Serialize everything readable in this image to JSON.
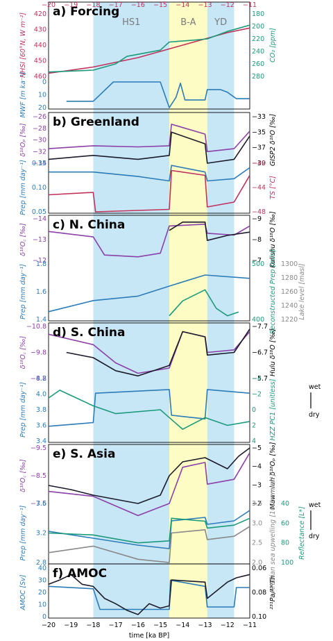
{
  "colors": {
    "stadial": "#c7e7f7",
    "interstadial": "#fcfcc4",
    "purple": "#8b3fa8",
    "black": "#1a1a2a",
    "blue": "#2b7bb9",
    "green": "#1a9a7a",
    "crimson": "#c0305a",
    "gray": "#888888"
  },
  "chart_data": {
    "type": "line",
    "xlabel": "time [ka BP]",
    "xlim": [
      -20,
      -11
    ],
    "xticks": [
      "−20",
      "−19",
      "−18",
      "−17",
      "−16",
      "−15",
      "−14",
      "−13",
      "−12",
      "−11"
    ],
    "bands": [
      {
        "label": "HS1",
        "from": -18.0,
        "to": -14.6,
        "color": "stadial"
      },
      {
        "label": "B-A",
        "from": -14.6,
        "to": -12.9,
        "color": "interstadial"
      },
      {
        "label": "YD",
        "from": -12.9,
        "to": -11.7,
        "color": "stadial"
      }
    ],
    "panels": [
      {
        "title": "a) Forcing",
        "axes": [
          {
            "label": "NHSI [60°N, W m⁻²]",
            "side": "left",
            "color": "#c0305a",
            "ticks": [
              "420",
              "430",
              "440",
              "450",
              "460"
            ]
          },
          {
            "label": "CO₂ [ppm]",
            "side": "right",
            "color": "#1a9a7a",
            "ticks": [
              "180",
              "200",
              "220",
              "240",
              "260",
              "280"
            ]
          },
          {
            "label": "MWF [m ka⁻¹]",
            "side": "left",
            "color": "#2b7bb9",
            "ticks": [
              "0",
              "10",
              "20"
            ]
          }
        ],
        "series": [
          {
            "name": "NHSI",
            "color": "crimson",
            "x": [
              -20,
              -18,
              -16,
              -14,
              -12,
              -11
            ],
            "y": [
              422,
              426,
              432,
              440,
              448,
              451
            ]
          },
          {
            "name": "CO₂",
            "color": "green",
            "x": [
              -20,
              -18,
              -17,
              -16.5,
              -15,
              -14.6,
              -13.5,
              -12.9,
              -12,
              -11
            ],
            "y": [
              187,
              190,
              200,
              212,
              222,
              235,
              238,
              240,
              252,
              262
            ]
          },
          {
            "name": "MWF",
            "color": "blue",
            "x": [
              -20,
              -19.2,
              -18,
              -17.1,
              -16.5,
              -15,
              -14.6,
              -14.3,
              -14.1,
              -13.9,
              -13.0,
              -12.9,
              -12.3,
              -12.0,
              -11.6,
              -11.0
            ],
            "y": [
              null,
              5,
              5,
              20,
              20,
              20,
              0,
              8,
              19,
              6,
              6,
              14,
              14,
              12,
              7,
              7
            ]
          }
        ]
      },
      {
        "title": "b) Greenland",
        "axes": [
          {
            "label": "δ¹⁸Oₚ [‰]",
            "side": "left",
            "color": "#8b3fa8",
            "ticks": [
              "−26",
              "−28",
              "−30",
              "−32",
              "−34"
            ]
          },
          {
            "label": "GISP2 δ¹⁸O [‰]",
            "side": "right",
            "color": "#000000",
            "ticks": [
              "−33",
              "−35",
              "−37",
              "−39"
            ]
          },
          {
            "label": "Prep [mm day⁻¹]",
            "side": "left",
            "color": "#2b7bb9",
            "ticks": [
              "0.15",
              "0.10",
              "0.05"
            ]
          },
          {
            "label": "TS [°C]",
            "side": "right",
            "color": "#c0305a",
            "ticks": [
              "−40",
              "−44",
              "−48"
            ]
          }
        ],
        "series": [
          {
            "name": "δ¹⁸Op",
            "color": "purple",
            "x": [
              -20,
              -18,
              -16,
              -14.6,
              -14.5,
              -13,
              -12.9,
              -11.7,
              -11
            ],
            "y": [
              -31.5,
              -31.0,
              -31.2,
              -31.0,
              -27.3,
              -29.0,
              -32.0,
              -31.5,
              -28.5
            ]
          },
          {
            "name": "GISP2",
            "color": "black",
            "x": [
              -20,
              -18,
              -16,
              -14.6,
              -14.5,
              -13,
              -12.9,
              -11.7,
              -11
            ],
            "y": [
              -38.5,
              -38.0,
              -38.5,
              -38.0,
              -35.0,
              -36.5,
              -39.0,
              -38.5,
              -35.5
            ]
          },
          {
            "name": "Prep",
            "color": "blue",
            "x": [
              -20,
              -18,
              -16,
              -14.6,
              -14.5,
              -13,
              -12.9,
              -11.7,
              -11
            ],
            "y": [
              0.14,
              0.14,
              0.13,
              0.12,
              0.155,
              0.14,
              0.12,
              0.125,
              0.15
            ]
          },
          {
            "name": "TS",
            "color": "crimson",
            "x": [
              -20,
              -18,
              -17.9,
              -14.6,
              -14.5,
              -13,
              -12.9,
              -11.7,
              -11
            ],
            "y": [
              -44.5,
              -44.0,
              -48.0,
              -47.5,
              -39.5,
              -40.5,
              -47.0,
              -46.0,
              -40.5
            ]
          }
        ]
      },
      {
        "title": "c) N. China",
        "axes": [
          {
            "label": "δ¹⁸O꜀ [‰]",
            "side": "left",
            "color": "#8b3fa8",
            "ticks": [
              "−14",
              "−13",
              "−12"
            ]
          },
          {
            "label": "Kulishu δ¹⁸O [‰]",
            "side": "right",
            "color": "#000000",
            "ticks": [
              "−9",
              "−8",
              "−7"
            ]
          },
          {
            "label": "Prep [mm day⁻¹]",
            "side": "left",
            "color": "#2b7bb9",
            "ticks": [
              "1.8",
              "1.6",
              "1.4"
            ]
          },
          {
            "label": "Reconstructed Prep [mm]",
            "side": "right",
            "color": "#1a9a7a",
            "ticks": [
              "500",
              "400"
            ]
          },
          {
            "label": "Lake level [masl]",
            "side": "right",
            "color": "#888888",
            "ticks": [
              "1300",
              "1280",
              "1260",
              "1240",
              "1220"
            ]
          }
        ],
        "series": [
          {
            "name": "δ¹⁸Oc",
            "color": "purple",
            "x": [
              -20,
              -18,
              -17.5,
              -16,
              -15,
              -14.6,
              -13,
              -12.9,
              -11.7,
              -11
            ],
            "y": [
              -13.6,
              -13.3,
              -12.3,
              -12.2,
              -12.4,
              -13.9,
              -14.0,
              -13.5,
              -13.4,
              -13.9
            ]
          },
          {
            "name": "Kulishu",
            "color": "black",
            "x": [
              -14.6,
              -14,
              -13,
              -12.9,
              -12,
              -11
            ],
            "y": [
              -8.6,
              -9.1,
              -9.1,
              -8.0,
              -8.3,
              -8.5
            ]
          },
          {
            "name": "Prep",
            "color": "blue",
            "x": [
              -20,
              -18,
              -16,
              -14.6,
              -13,
              -11
            ],
            "y": [
              1.42,
              1.52,
              1.56,
              1.65,
              1.75,
              1.72
            ]
          },
          {
            "name": "Reconstructed Prep",
            "color": "green",
            "x": [
              -14.6,
              -14,
              -13,
              -12.5,
              -12,
              -11.5
            ],
            "y": [
              380,
              420,
              450,
              400,
              380,
              390
            ]
          }
        ]
      },
      {
        "title": "d) S. China",
        "axes": [
          {
            "label": "δ¹⁸O꜀ [‰]",
            "side": "left",
            "color": "#8b3fa8",
            "ticks": [
              "−10.8",
              "−9.8",
              "−8.8"
            ]
          },
          {
            "label": "Hulu δ¹⁸O [‰]",
            "side": "right",
            "color": "#000000",
            "ticks": [
              "−7.7",
              "−6.7",
              "−5.7"
            ]
          },
          {
            "label": "Prep [mm day⁻¹]",
            "side": "left",
            "color": "#2b7bb9",
            "ticks": [
              "4.2",
              "4.0",
              "3.8",
              "3.6",
              "3.4"
            ]
          },
          {
            "label": "HZZ PC1 [unitless]",
            "side": "right",
            "color": "#1a9a7a",
            "ticks": [
              "−4",
              "−2",
              "0",
              "2",
              "4"
            ]
          }
        ],
        "series": [
          {
            "name": "δ¹⁸Oc",
            "color": "purple",
            "x": [
              -20,
              -18,
              -17,
              -16,
              -14.6,
              -14,
              -13,
              -12.9,
              -11.7,
              -11
            ],
            "y": [
              -10.5,
              -10.1,
              -9.4,
              -9.0,
              -9.2,
              -10.6,
              -10.4,
              -9.8,
              -9.9,
              -10.6
            ]
          },
          {
            "name": "Hulu",
            "color": "black",
            "x": [
              -19.2,
              -18,
              -17,
              -16,
              -14.6,
              -14,
              -13,
              -12.9,
              -11.7,
              -11
            ],
            "y": [
              -6.7,
              -6.5,
              -6.0,
              -5.8,
              -6.2,
              -7.5,
              -7.3,
              -6.6,
              -6.7,
              -7.6
            ]
          },
          {
            "name": "Prep",
            "color": "blue",
            "x": [
              -20,
              -18,
              -17.9,
              -14.6,
              -14.5,
              -13,
              -12.9,
              -11,
              -11
            ],
            "y": [
              3.6,
              3.65,
              4.05,
              4.1,
              3.75,
              3.7,
              4.1,
              4.05,
              4.05
            ]
          },
          {
            "name": "HZZ PC1",
            "color": "green",
            "x": [
              -20,
              -19.5,
              -18,
              -17,
              -15,
              -14.6,
              -14,
              -13,
              -12,
              -11
            ],
            "y": [
              -1.5,
              -2.5,
              -0.5,
              0.5,
              0,
              1.0,
              2.5,
              1.0,
              2.0,
              1.5
            ]
          }
        ]
      },
      {
        "title": "e) S. Asia",
        "axes": [
          {
            "label": "δ¹⁸O꜀ [‰]",
            "side": "left",
            "color": "#8b3fa8",
            "ticks": [
              "−9.5",
              "−8.5",
              "−7.5"
            ]
          },
          {
            "label": "Mawmluh δ¹⁸Oₚ [‰]",
            "side": "right",
            "color": "#000000",
            "ticks": [
              "−5",
              "−4",
              "−3",
              "−2"
            ]
          },
          {
            "label": "Prep [mm day⁻¹]",
            "side": "left",
            "color": "#2b7bb9",
            "ticks": [
              "3.6",
              "3.2",
              "2.8"
            ]
          },
          {
            "label": "Arabian sea upwelling [10⁻⁶ cm s⁻¹]",
            "side": "right",
            "color": "#888888",
            "ticks": [
              "3.5",
              "3.0",
              "2.5",
              "2.0"
            ]
          },
          {
            "label": "Reflectance [L*]",
            "side": "right",
            "color": "#1a9a7a",
            "ticks": [
              "40",
              "60",
              "80",
              "100"
            ]
          }
        ],
        "series": [
          {
            "name": "δ¹⁸Oc",
            "color": "purple",
            "x": [
              -20,
              -18,
              -16,
              -14.6,
              -14,
              -13,
              -12.9,
              -11.7,
              -11
            ],
            "y": [
              -8.0,
              -7.8,
              -7.0,
              -7.5,
              -9.0,
              -9.2,
              -8.3,
              -8.5,
              -9.6
            ]
          },
          {
            "name": "Mawmluh",
            "color": "black",
            "x": [
              -20,
              -19,
              -18,
              -17,
              -16,
              -15,
              -14.6,
              -14,
              -13,
              -12,
              -11.5,
              -11
            ],
            "y": [
              -2.3,
              -2.0,
              -1.6,
              -1.3,
              -1.0,
              -1.6,
              -3.0,
              -4.0,
              -4.3,
              -3.5,
              -4.4,
              -5.0
            ]
          },
          {
            "name": "Prep",
            "color": "blue",
            "x": [
              -20,
              -18,
              -16,
              -14.6,
              -14.5,
              -13,
              -12.9,
              -11.7,
              -11
            ],
            "y": [
              3.25,
              3.15,
              3.05,
              3.0,
              3.4,
              3.45,
              3.35,
              3.4,
              3.55
            ]
          },
          {
            "name": "Arabian sea upwelling",
            "color": "gray",
            "x": [
              -20,
              -18,
              -16,
              -14.6,
              -14.5,
              -13,
              -12.9,
              -11.7,
              -11
            ],
            "y": [
              2.3,
              2.5,
              2.1,
              2.0,
              2.9,
              3.0,
              2.7,
              2.8,
              3.1
            ]
          },
          {
            "name": "Reflectance",
            "color": "green",
            "x": [
              -20,
              -18,
              -16,
              -14.6,
              -14.5,
              -13,
              -12.9,
              -11.7,
              -11
            ],
            "y": [
              70,
              72,
              80,
              78,
              55,
              58,
              65,
              62,
              55
            ]
          }
        ]
      },
      {
        "title": "f) AMOC",
        "axes": [
          {
            "label": "AMOC [Sv]",
            "side": "left",
            "color": "#2b7bb9",
            "ticks": [
              "40",
              "30",
              "20",
              "10",
              "0"
            ]
          },
          {
            "label": "²³¹Pa/²³⁰Th",
            "side": "right",
            "color": "#000000",
            "ticks": [
              "0.06",
              "0.08",
              "0.10"
            ]
          }
        ],
        "series": [
          {
            "name": "AMOC",
            "color": "blue",
            "x": [
              -20,
              -18,
              -17.7,
              -14.6,
              -14.55,
              -13,
              -12.9,
              -11.7,
              -11.6,
              -11
            ],
            "y": [
              25,
              23,
              6,
              6,
              30,
              25,
              8,
              8,
              24,
              24
            ]
          },
          {
            "name": "²³¹Pa/²³⁰Th",
            "color": "black",
            "x": [
              -20,
              -19.5,
              -19,
              -18.5,
              -18,
              -17.5,
              -17,
              -16.5,
              -16,
              -15.5,
              -15,
              -14.6,
              -14.5,
              -13,
              -12.9,
              -12,
              -11.6,
              -11
            ],
            "y": [
              0.07,
              0.066,
              0.061,
              0.07,
              0.072,
              0.083,
              0.088,
              0.094,
              0.098,
              0.088,
              0.092,
              0.09,
              0.066,
              0.068,
              0.083,
              0.068,
              0.064,
              0.061
            ]
          }
        ]
      }
    ],
    "annotations": {
      "wet": "wet",
      "dry": "dry"
    }
  }
}
